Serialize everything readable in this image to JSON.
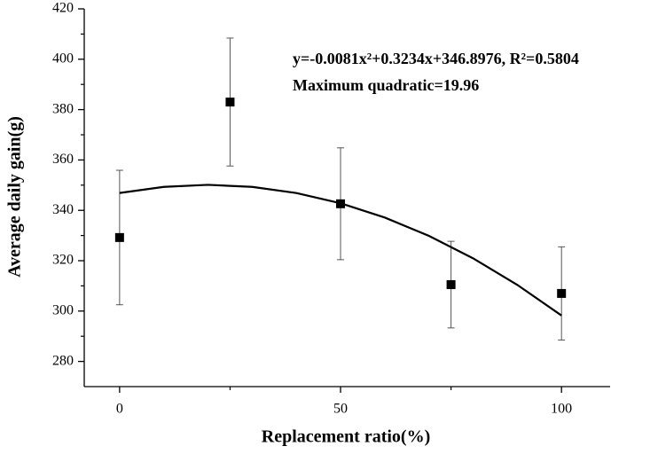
{
  "chart_data": {
    "type": "scatter",
    "xlabel": "Replacement ratio(%)",
    "ylabel": "Average daily gain(g)",
    "annotations": [
      "y=-0.0081x²+0.3234x+346.8976, R²=0.5804",
      "Maximum quadratic=19.96"
    ],
    "series": [
      {
        "x": [
          0,
          25,
          50,
          75,
          100
        ],
        "values": [
          329.2,
          383.0,
          342.6,
          310.5,
          307.0
        ],
        "errors": [
          26.7,
          25.4,
          22.2,
          17.2,
          18.5
        ],
        "color": "#000000"
      },
      {
        "type": "line",
        "x": [
          0,
          10,
          20,
          30,
          40,
          50,
          60,
          70,
          80,
          90,
          100
        ],
        "values": [
          346.9,
          349.32,
          350.13,
          349.31,
          346.88,
          342.82,
          337.14,
          329.85,
          320.93,
          310.4,
          298.24
        ],
        "color": "#000000"
      }
    ],
    "xlim": [
      -8,
      111
    ],
    "ylim": [
      270,
      420
    ],
    "xticks": [
      0,
      50,
      100
    ],
    "xminor": [
      25,
      75
    ],
    "yticks": [
      280,
      300,
      320,
      340,
      360,
      380,
      400,
      420
    ],
    "yminor": [
      290,
      310,
      330,
      350,
      370,
      390,
      410
    ]
  }
}
